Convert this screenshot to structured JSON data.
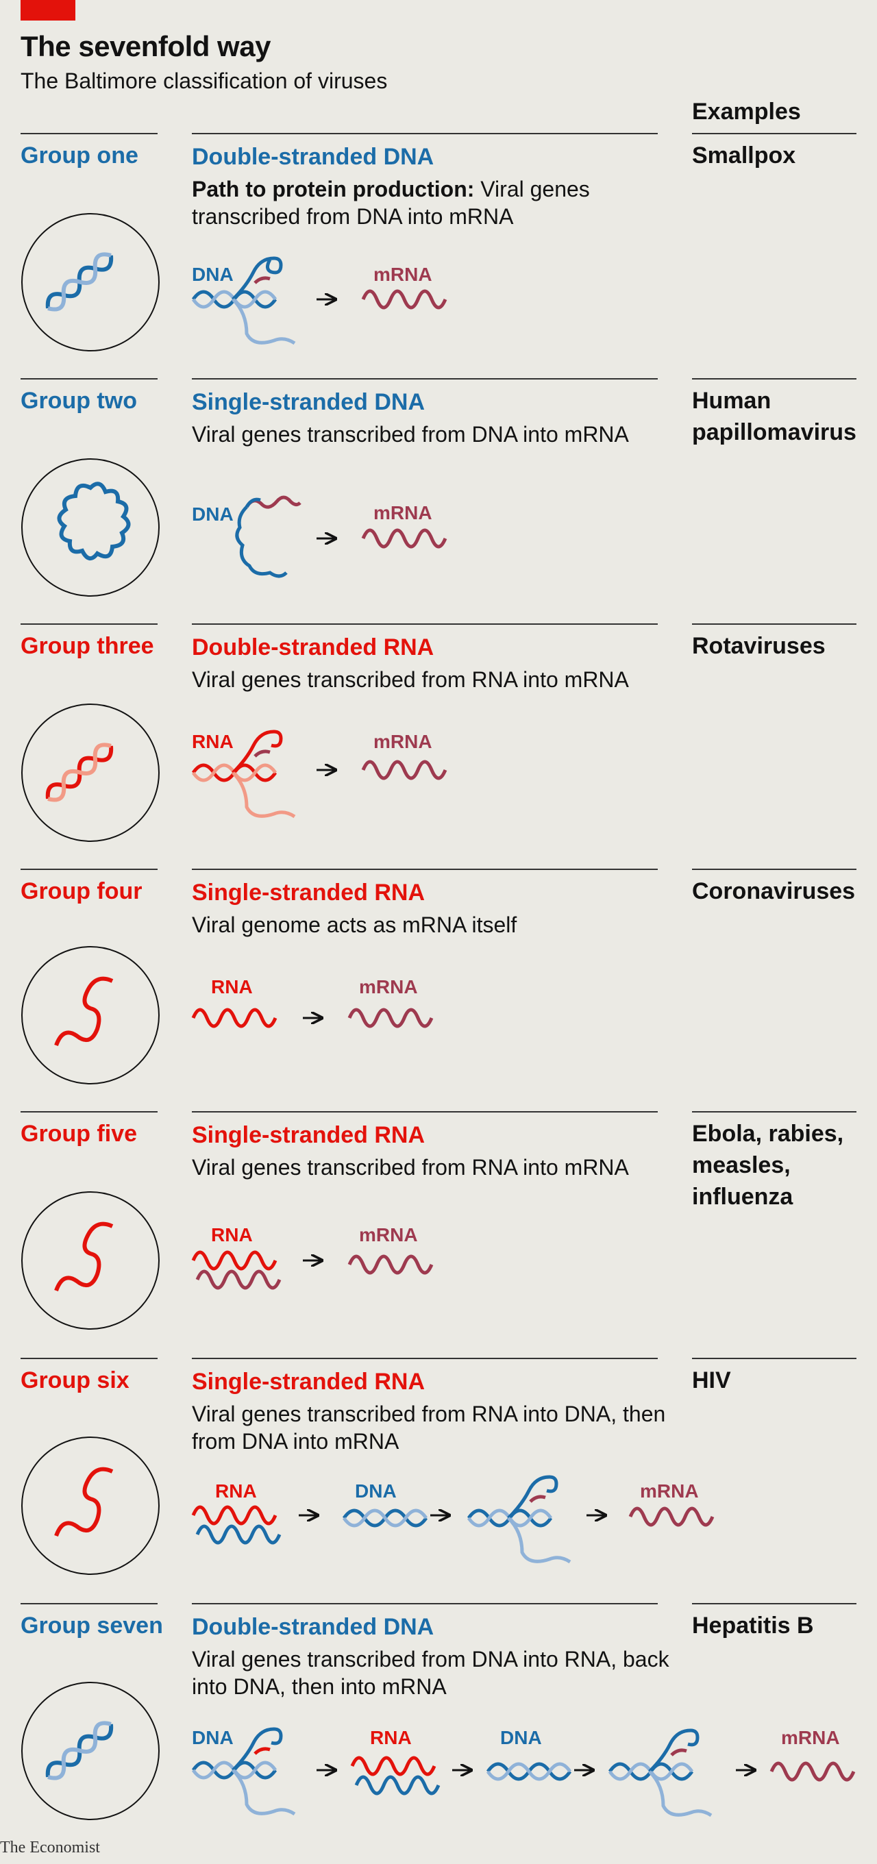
{
  "header": {
    "title": "The sevenfold way",
    "subtitle": "The Baltimore classification of viruses",
    "examples_heading": "Examples"
  },
  "colors": {
    "accent_red": "#e3120b",
    "dna_blue": "#1b6ca8",
    "dna_light_blue": "#8fb2d8",
    "mrna_maroon": "#9e3a4f",
    "rna_light": "#f29a86"
  },
  "labels": {
    "dna": "DNA",
    "rna": "RNA",
    "mrna": "mRNA"
  },
  "groups": [
    {
      "name": "Group one",
      "type": "Double-stranded DNA",
      "desc_bold": "Path to protein production:",
      "desc": " Viral genes transcribed from DNA into mRNA",
      "example": "Smallpox"
    },
    {
      "name": "Group two",
      "type": "Single-stranded DNA",
      "desc_bold": "",
      "desc": "Viral genes transcribed from DNA into mRNA",
      "example": "Human papillomavirus"
    },
    {
      "name": "Group three",
      "type": "Double-stranded RNA",
      "desc_bold": "",
      "desc": "Viral genes transcribed from RNA into mRNA",
      "example": "Rotaviruses"
    },
    {
      "name": "Group four",
      "type": "Single-stranded RNA",
      "desc_bold": "",
      "desc": "Viral genome acts as mRNA itself",
      "example": "Coronaviruses"
    },
    {
      "name": "Group five",
      "type": "Single-stranded RNA",
      "desc_bold": "",
      "desc": "Viral genes transcribed from RNA into mRNA",
      "example": "Ebola, rabies, measles, influenza"
    },
    {
      "name": "Group six",
      "type": "Single-stranded RNA",
      "desc_bold": "",
      "desc": "Viral genes transcribed from RNA into DNA, then from DNA into mRNA",
      "example": "HIV"
    },
    {
      "name": "Group seven",
      "type": "Double-stranded DNA",
      "desc_bold": "",
      "desc": "Viral genes transcribed from DNA into RNA, back into DNA, then into mRNA",
      "example": "Hepatitis B"
    }
  ],
  "source": "The Economist"
}
